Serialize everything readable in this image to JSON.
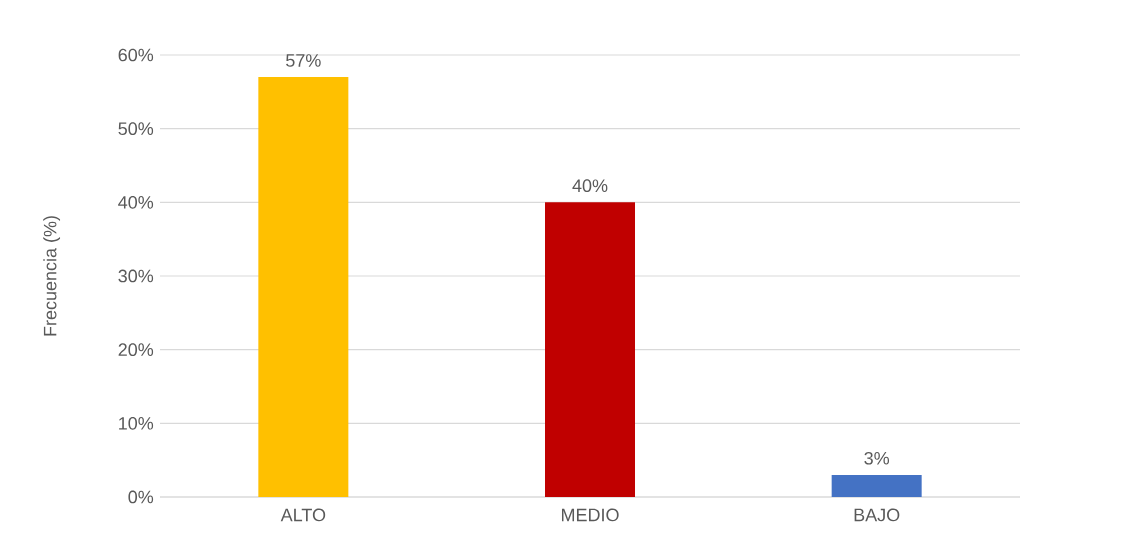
{
  "chart_data": {
    "type": "bar",
    "ylabel": "Frecuencia (%)",
    "categories": [
      "ALTO",
      "MEDIO",
      "BAJO"
    ],
    "values": [
      57,
      40,
      3
    ],
    "colors": [
      "#ffc000",
      "#c00000",
      "#4472c4"
    ],
    "value_labels": [
      "57%",
      "40%",
      "3%"
    ],
    "ylim": [
      0,
      60
    ],
    "yticks": [
      {
        "value": 0,
        "label": "0%"
      },
      {
        "value": 10,
        "label": "10%"
      },
      {
        "value": 20,
        "label": "20%"
      },
      {
        "value": 30,
        "label": "30%"
      },
      {
        "value": 40,
        "label": "40%"
      },
      {
        "value": 50,
        "label": "50%"
      },
      {
        "value": 60,
        "label": "60%"
      }
    ],
    "grid": "y"
  }
}
